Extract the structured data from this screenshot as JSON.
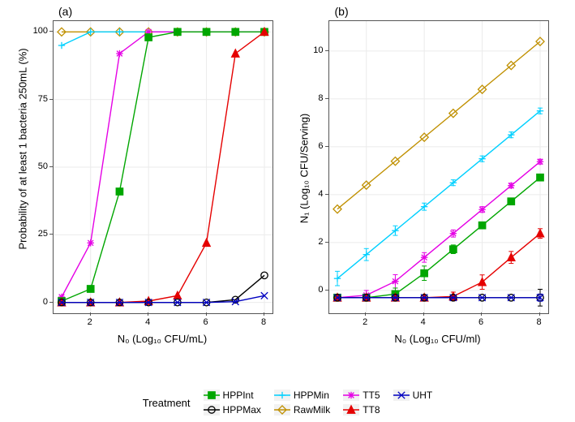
{
  "panel_a": {
    "label": "(a)",
    "xlabel": "N₀ (Log₁₀ CFU/mL)",
    "ylabel": "Probability of at least 1 bacteria 250mL (%)",
    "xlim": [
      1,
      8
    ],
    "ylim": [
      0,
      100
    ],
    "xticks": [
      2,
      4,
      6,
      8
    ],
    "yticks": [
      0,
      25,
      50,
      75,
      100
    ],
    "grid_color": "#ebebeb",
    "background": "#ffffff",
    "series": {
      "HPPInt": {
        "x": [
          1,
          2,
          3,
          4,
          5,
          6,
          7,
          8
        ],
        "y": [
          0.5,
          5,
          41,
          98,
          100,
          100,
          100,
          100
        ]
      },
      "HPPMax": {
        "x": [
          1,
          2,
          3,
          4,
          5,
          6,
          7,
          8
        ],
        "y": [
          0,
          0,
          0,
          0,
          0,
          0,
          1,
          10
        ]
      },
      "HPPMin": {
        "x": [
          1,
          2,
          3,
          4,
          5,
          6,
          7,
          8
        ],
        "y": [
          95,
          100,
          100,
          100,
          100,
          100,
          100,
          100
        ]
      },
      "RawMilk": {
        "x": [
          1,
          2,
          3,
          4,
          5,
          6,
          7,
          8
        ],
        "y": [
          100,
          100,
          100,
          100,
          100,
          100,
          100,
          100
        ]
      },
      "TT5": {
        "x": [
          1,
          2,
          3,
          4,
          5,
          6,
          7,
          8
        ],
        "y": [
          2,
          22,
          92,
          100,
          100,
          100,
          100,
          100
        ]
      },
      "TT8": {
        "x": [
          1,
          2,
          3,
          4,
          5,
          6,
          7,
          8
        ],
        "y": [
          0,
          0,
          0,
          0.5,
          2.5,
          22,
          92,
          100
        ]
      },
      "UHT": {
        "x": [
          1,
          2,
          3,
          4,
          5,
          6,
          7,
          8
        ],
        "y": [
          0,
          0,
          0,
          0,
          0,
          0,
          0.3,
          2.5
        ]
      }
    }
  },
  "panel_b": {
    "label": "(b)",
    "xlabel": "N₀ (Log₁₀ CFU/ml)",
    "ylabel": "N₁ (Log₁₀ CFU/Serving)",
    "xlim": [
      1,
      8
    ],
    "ylim": [
      -0.5,
      10.8
    ],
    "xticks": [
      2,
      4,
      6,
      8
    ],
    "yticks": [
      0,
      2,
      4,
      6,
      8,
      10
    ],
    "grid_color": "#ebebeb",
    "background": "#ffffff",
    "series": {
      "HPPInt": {
        "x": [
          1,
          2,
          3,
          4,
          5,
          6,
          7,
          8
        ],
        "y": [
          -0.3,
          -0.3,
          -0.15,
          0.72,
          1.72,
          2.72,
          3.72,
          4.72
        ],
        "err": [
          0,
          0,
          0.25,
          0.3,
          0.18,
          0.12,
          0.1,
          0.1
        ]
      },
      "HPPMax": {
        "x": [
          1,
          2,
          3,
          4,
          5,
          6,
          7,
          8
        ],
        "y": [
          -0.3,
          -0.3,
          -0.3,
          -0.3,
          -0.3,
          -0.3,
          -0.3,
          -0.3
        ],
        "err": [
          0,
          0,
          0,
          0,
          0,
          0,
          0,
          0.35
        ]
      },
      "HPPMin": {
        "x": [
          1,
          2,
          3,
          4,
          5,
          6,
          7,
          8
        ],
        "y": [
          0.5,
          1.5,
          2.5,
          3.5,
          4.5,
          5.5,
          6.5,
          7.5
        ],
        "err": [
          0.3,
          0.25,
          0.2,
          0.15,
          0.12,
          0.12,
          0.12,
          0.12
        ]
      },
      "RawMilk": {
        "x": [
          1,
          2,
          3,
          4,
          5,
          6,
          7,
          8
        ],
        "y": [
          3.4,
          4.4,
          5.4,
          6.4,
          7.4,
          8.4,
          9.4,
          10.4
        ],
        "err": [
          0,
          0,
          0,
          0,
          0,
          0,
          0,
          0
        ]
      },
      "TT5": {
        "x": [
          1,
          2,
          3,
          4,
          5,
          6,
          7,
          8
        ],
        "y": [
          -0.3,
          -0.2,
          0.38,
          1.38,
          2.38,
          3.38,
          4.38,
          5.38
        ],
        "err": [
          0,
          0.2,
          0.28,
          0.2,
          0.15,
          0.12,
          0.1,
          0.1
        ]
      },
      "TT8": {
        "x": [
          1,
          2,
          3,
          4,
          5,
          6,
          7,
          8
        ],
        "y": [
          -0.3,
          -0.3,
          -0.3,
          -0.3,
          -0.25,
          0.35,
          1.38,
          2.38
        ],
        "err": [
          0,
          0,
          0,
          0,
          0.18,
          0.3,
          0.25,
          0.2
        ]
      },
      "UHT": {
        "x": [
          1,
          2,
          3,
          4,
          5,
          6,
          7,
          8
        ],
        "y": [
          -0.3,
          -0.3,
          -0.3,
          -0.3,
          -0.3,
          -0.3,
          -0.3,
          -0.3
        ],
        "err": [
          0,
          0,
          0,
          0,
          0,
          0,
          0,
          0.15
        ]
      }
    }
  },
  "treatments": {
    "HPPInt": {
      "color": "#00a600",
      "marker": "square-filled"
    },
    "HPPMax": {
      "color": "#000000",
      "marker": "circle-open"
    },
    "HPPMin": {
      "color": "#00d0ff",
      "marker": "plus"
    },
    "RawMilk": {
      "color": "#c09000",
      "marker": "diamond-open"
    },
    "TT5": {
      "color": "#e500e5",
      "marker": "star"
    },
    "TT8": {
      "color": "#e50000",
      "marker": "triangle-filled"
    },
    "UHT": {
      "color": "#0000c0",
      "marker": "x"
    }
  },
  "legend": {
    "title": "Treatment",
    "columns": [
      [
        "HPPInt",
        "HPPMax"
      ],
      [
        "HPPMin",
        "RawMilk"
      ],
      [
        "TT5",
        "TT8"
      ],
      [
        "UHT"
      ]
    ]
  },
  "line_width": 1.4,
  "marker_size": 4.2,
  "font_sizes": {
    "axis_label": 13,
    "tick": 11,
    "panel_label": 14,
    "legend": 12
  }
}
